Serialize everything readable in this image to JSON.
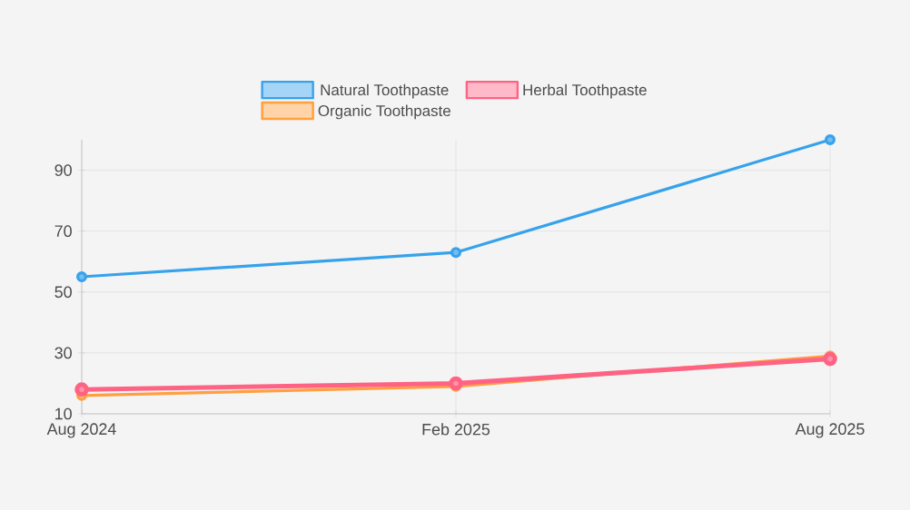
{
  "chart_data": {
    "type": "line",
    "categories": [
      "Aug 2024",
      "Feb 2025",
      "Aug 2025"
    ],
    "series": [
      {
        "name": "Natural Toothpaste",
        "color": "#36a2eb",
        "values": [
          55,
          63,
          100
        ]
      },
      {
        "name": "Herbal Toothpaste",
        "color": "#ff6384",
        "values": [
          18,
          20,
          28
        ]
      },
      {
        "name": "Organic Toothpaste",
        "color": "#ff9f40",
        "values": [
          16,
          19,
          29
        ]
      }
    ],
    "ylim": [
      10,
      100
    ],
    "yticks": [
      10,
      30,
      50,
      70,
      90
    ],
    "grid": true,
    "legend": "top",
    "marker": "circle",
    "line_style": "solid"
  }
}
